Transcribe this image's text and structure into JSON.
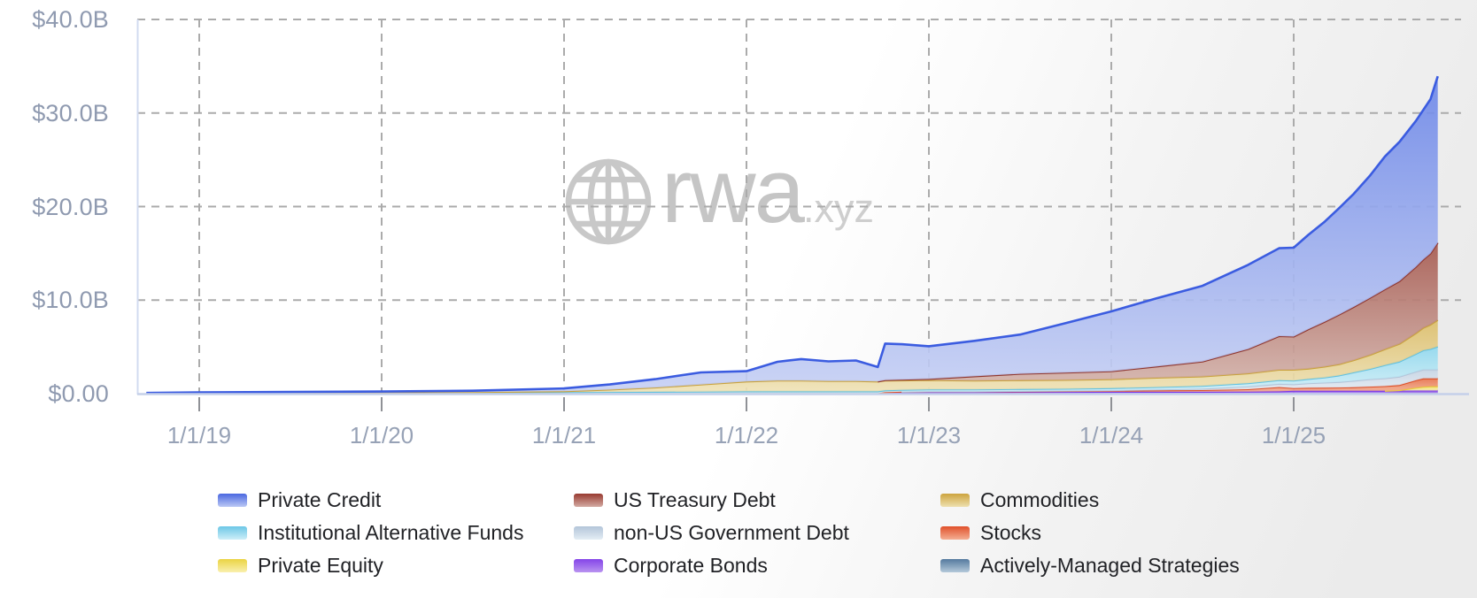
{
  "watermark": {
    "brand": "rwa",
    "suffix": ".xyz"
  },
  "colors": {
    "grid": "#ababab",
    "axis_line": "#c5d0e9",
    "plot_left_border": "#d2dbf0",
    "tick_mark": "#8f9196",
    "y_label": "#8f9ab0",
    "x_label": "#97a2b6",
    "legend_text": "#212226",
    "watermark_gray": "#c6c6c6"
  },
  "chart_data": {
    "type": "area",
    "stacked": true,
    "title": "",
    "xlabel": "",
    "ylabel": "",
    "ylim": [
      0,
      40
    ],
    "grid": "dashed",
    "legend_position": "bottom",
    "y_axis": {
      "tick_values": [
        0,
        10,
        20,
        30,
        40
      ],
      "tick_labels": [
        "$0.00",
        "$10.0B",
        "$20.0B",
        "$30.0B",
        "$40.0B"
      ]
    },
    "x_axis": {
      "tick_years": [
        2019,
        2020,
        2021,
        2022,
        2023,
        2024,
        2025
      ],
      "tick_labels": [
        "1/1/19",
        "1/1/20",
        "1/1/21",
        "1/1/22",
        "1/1/23",
        "1/1/24",
        "1/1/25"
      ]
    },
    "x_years": [
      2018.71,
      2019.0,
      2019.5,
      2020.0,
      2020.5,
      2021.0,
      2021.25,
      2021.5,
      2021.75,
      2022.0,
      2022.17,
      2022.3,
      2022.45,
      2022.6,
      2022.72,
      2022.76,
      2022.85,
      2023.0,
      2023.25,
      2023.5,
      2023.75,
      2024.0,
      2024.25,
      2024.5,
      2024.75,
      2024.92,
      2025.0,
      2025.08,
      2025.17,
      2025.25,
      2025.33,
      2025.42,
      2025.5,
      2025.58,
      2025.67,
      2025.71,
      2025.75,
      2025.79
    ],
    "unit": "USD billions",
    "series": [
      {
        "key": "actively_managed_strategies",
        "label": "Actively-Managed Strategies",
        "line": "#4f7396",
        "fill_top": "#7da0bf",
        "fill_bottom": "#c2d4e2",
        "swatch_top": "#54799e",
        "swatch_bottom": "#b4c9da",
        "values": [
          0,
          0,
          0,
          0,
          0,
          0,
          0,
          0,
          0,
          0,
          0,
          0,
          0,
          0,
          0,
          0,
          0,
          0,
          0,
          0,
          0,
          0,
          0,
          0,
          0,
          0,
          0,
          0,
          0,
          0,
          0,
          0,
          0,
          0.02,
          0.03,
          0.03,
          0.03,
          0.03
        ]
      },
      {
        "key": "corporate_bonds",
        "label": "Corporate Bonds",
        "line": "#7b3be8",
        "fill_top": "#8d52e4",
        "fill_bottom": "#b18cee",
        "swatch_top": "#8444e8",
        "swatch_bottom": "#b993f0",
        "values": [
          0,
          0,
          0,
          0,
          0,
          0,
          0,
          0,
          0,
          0,
          0,
          0,
          0,
          0,
          0,
          0.1,
          0.15,
          0.15,
          0.15,
          0.18,
          0.18,
          0.2,
          0.2,
          0.2,
          0.22,
          0.25,
          0.3,
          0.3,
          0.3,
          0.3,
          0.3,
          0.3,
          0.3,
          0.3,
          0.3,
          0.3,
          0.3,
          0.3
        ]
      },
      {
        "key": "private_equity",
        "label": "Private Equity",
        "line": "#e7cd3e",
        "fill_top": "#f0dc6a",
        "fill_bottom": "#f9f1b4",
        "swatch_top": "#ead342",
        "swatch_bottom": "#f9f0ae",
        "values": [
          0,
          0,
          0,
          0,
          0,
          0,
          0,
          0,
          0,
          0,
          0,
          0,
          0,
          0,
          0,
          0,
          0,
          0,
          0,
          0,
          0,
          0,
          0,
          0,
          0,
          0,
          0,
          0,
          0,
          0,
          0,
          0,
          0,
          0.05,
          0.3,
          0.4,
          0.45,
          0.45
        ]
      },
      {
        "key": "stocks",
        "label": "Stocks",
        "line": "#dd4f28",
        "fill_top": "#e8744c",
        "fill_bottom": "#f5b89e",
        "swatch_top": "#e0512b",
        "swatch_bottom": "#f4ae92",
        "values": [
          0,
          0,
          0,
          0,
          0,
          0.01,
          0.02,
          0.03,
          0.04,
          0.05,
          0.05,
          0.05,
          0.05,
          0.05,
          0.05,
          0.05,
          0.06,
          0.08,
          0.08,
          0.08,
          0.1,
          0.12,
          0.15,
          0.18,
          0.25,
          0.45,
          0.3,
          0.32,
          0.33,
          0.35,
          0.38,
          0.45,
          0.5,
          0.55,
          0.8,
          0.9,
          0.85,
          0.85
        ]
      },
      {
        "key": "non_us_government_debt",
        "label": "non-US Government Debt",
        "line": "#b4c5d9",
        "fill_top": "#c6d4e4",
        "fill_bottom": "#e6eef5",
        "swatch_top": "#b3c5d9",
        "swatch_bottom": "#e4edf4",
        "values": [
          0,
          0,
          0,
          0,
          0,
          0,
          0,
          0,
          0,
          0,
          0,
          0,
          0,
          0,
          0,
          0,
          0,
          0.02,
          0.02,
          0.03,
          0.04,
          0.05,
          0.1,
          0.15,
          0.3,
          0.35,
          0.4,
          0.5,
          0.55,
          0.6,
          0.7,
          0.8,
          0.85,
          0.9,
          0.92,
          0.95,
          0.95,
          0.95
        ]
      },
      {
        "key": "institutional_alternative_funds",
        "label": "Institutional Alternative Funds",
        "line": "#62c1e0",
        "fill_top": "#90d8ee",
        "fill_bottom": "#d4f1f9",
        "swatch_top": "#6cc7e6",
        "swatch_bottom": "#cdeef8",
        "values": [
          0.05,
          0.08,
          0.1,
          0.12,
          0.13,
          0.15,
          0.16,
          0.17,
          0.18,
          0.2,
          0.2,
          0.2,
          0.2,
          0.2,
          0.2,
          0.2,
          0.2,
          0.2,
          0.2,
          0.2,
          0.2,
          0.22,
          0.25,
          0.3,
          0.35,
          0.4,
          0.4,
          0.45,
          0.55,
          0.7,
          0.9,
          1.1,
          1.4,
          1.6,
          1.9,
          2.05,
          2.2,
          2.45
        ]
      },
      {
        "key": "commodities",
        "label": "Commodities",
        "line": "#c9a23d",
        "fill_top": "#dcbe6a",
        "fill_bottom": "#efe2b6",
        "swatch_top": "#cda43e",
        "swatch_bottom": "#eee0b0",
        "values": [
          0,
          0,
          0,
          0.01,
          0.03,
          0.1,
          0.25,
          0.45,
          0.75,
          1.05,
          1.15,
          1.15,
          1.1,
          1.1,
          1.05,
          1.05,
          1.0,
          1.0,
          0.95,
          0.95,
          0.95,
          0.95,
          1.0,
          1.0,
          1.05,
          1.1,
          1.15,
          1.1,
          1.15,
          1.2,
          1.3,
          1.5,
          1.7,
          1.9,
          2.2,
          2.4,
          2.6,
          2.85
        ]
      },
      {
        "key": "us_treasury_debt",
        "label": "US Treasury Debt",
        "line": "#8f362e",
        "fill_top": "#a65a50",
        "fill_bottom": "#d2b0a8",
        "swatch_top": "#983a30",
        "swatch_bottom": "#d3aba3",
        "values": [
          0,
          0,
          0,
          0,
          0,
          0,
          0,
          0,
          0,
          0,
          0,
          0,
          0,
          0,
          0,
          0.05,
          0.08,
          0.12,
          0.45,
          0.68,
          0.78,
          0.85,
          1.2,
          1.6,
          2.6,
          3.6,
          3.55,
          4.2,
          4.8,
          5.3,
          5.7,
          6.1,
          6.4,
          6.7,
          7.1,
          7.3,
          7.6,
          8.25
        ]
      },
      {
        "key": "private_credit",
        "label": "Private Credit",
        "line": "#3b5ce0",
        "fill_top": "#6e88e8",
        "fill_bottom": "#c6d0f4",
        "swatch_top": "#4a67e0",
        "swatch_bottom": "#bcc9f4",
        "values": [
          0.03,
          0.05,
          0.08,
          0.1,
          0.15,
          0.3,
          0.55,
          0.9,
          1.3,
          1.1,
          2.0,
          2.3,
          2.1,
          2.2,
          1.55,
          3.9,
          3.8,
          3.5,
          3.8,
          4.2,
          5.3,
          6.4,
          7.3,
          8.1,
          9.0,
          9.4,
          9.5,
          10.1,
          10.7,
          11.4,
          12.1,
          13.1,
          14.2,
          14.9,
          15.6,
          16.0,
          16.5,
          17.8
        ]
      }
    ],
    "legend_columns": [
      [
        "private_credit",
        "institutional_alternative_funds",
        "private_equity"
      ],
      [
        "us_treasury_debt",
        "non_us_government_debt",
        "corporate_bonds"
      ],
      [
        "commodities",
        "stocks",
        "actively_managed_strategies"
      ]
    ]
  }
}
